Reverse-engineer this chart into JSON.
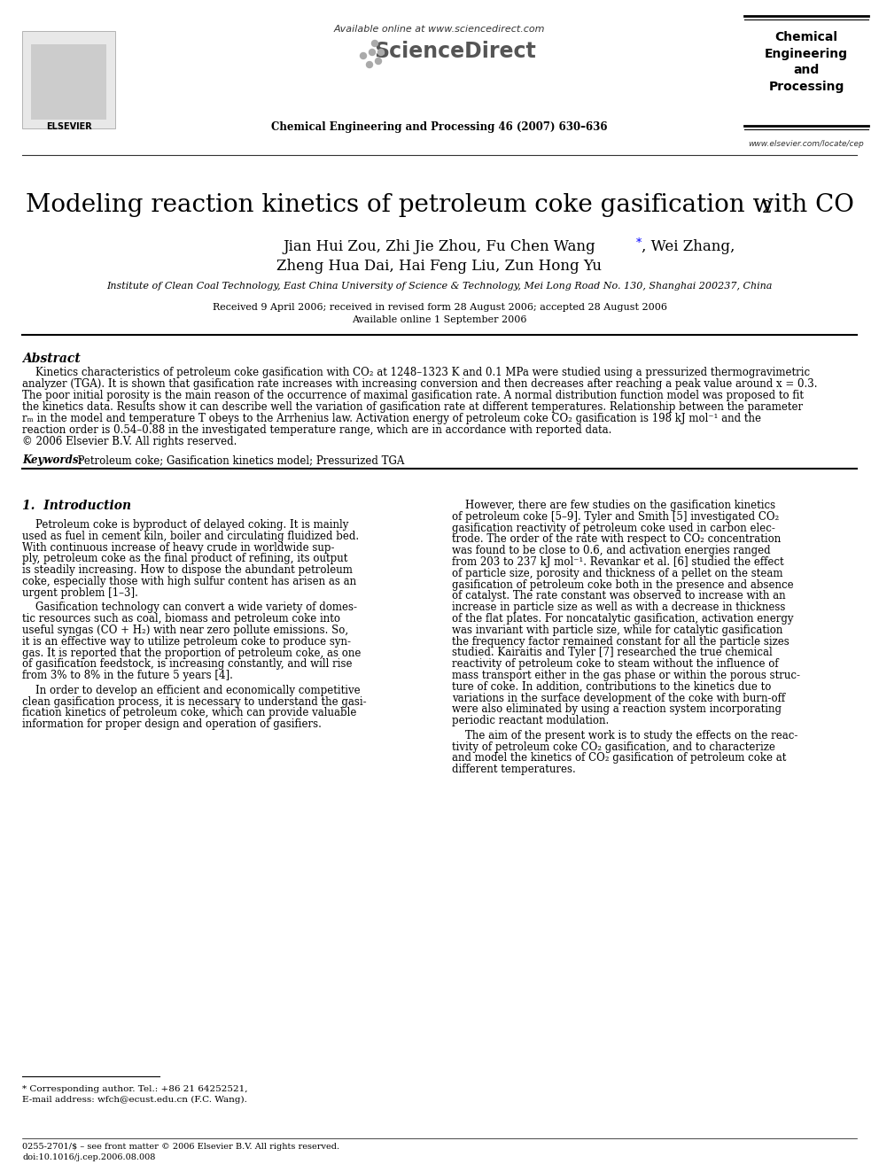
{
  "bg_color": "#ffffff",
  "header_available": "Available online at www.sciencedirect.com",
  "header_journal": "Chemical Engineering and Processing 46 (2007) 630–636",
  "header_website": "www.elsevier.com/locate/cep",
  "header_box_text": "Chemical\nEngineering\nand\nProcessing",
  "title_main": "Modeling reaction kinetics of petroleum coke gasification with CO",
  "authors_line1": "Jian Hui Zou, Zhi Jie Zhou, Fu Chen Wang",
  "authors_line1_end": ", Wei Zhang,",
  "authors_line2": "Zheng Hua Dai, Hai Feng Liu, Zun Hong Yu",
  "affiliation": "Institute of Clean Coal Technology, East China University of Science & Technology, Mei Long Road No. 130, Shanghai 200237, China",
  "received_text": "Received 9 April 2006; received in revised form 28 August 2006; accepted 28 August 2006",
  "online_text": "Available online 1 September 2006",
  "abstract_title": "Abstract",
  "abstract_body": [
    "    Kinetics characteristics of petroleum coke gasification with CO₂ at 1248–1323 K and 0.1 MPa were studied using a pressurized thermogravimetric",
    "analyzer (TGA). It is shown that gasification rate increases with increasing conversion and then decreases after reaching a peak value around x = 0.3.",
    "The poor initial porosity is the main reason of the occurrence of maximal gasification rate. A normal distribution function model was proposed to fit",
    "the kinetics data. Results show it can describe well the variation of gasification rate at different temperatures. Relationship between the parameter",
    "rₘ in the model and temperature T obeys to the Arrhenius law. Activation energy of petroleum coke CO₂ gasification is 198 kJ mol⁻¹ and the",
    "reaction order is 0.54–0.88 in the investigated temperature range, which are in accordance with reported data.",
    "© 2006 Elsevier B.V. All rights reserved."
  ],
  "keywords_label": "Keywords:",
  "keywords_text": "  Petroleum coke; Gasification kinetics model; Pressurized TGA",
  "section1_title": "1.  Introduction",
  "left_col": [
    "    Petroleum coke is byproduct of delayed coking. It is mainly",
    "used as fuel in cement kiln, boiler and circulating fluidized bed.",
    "With continuous increase of heavy crude in worldwide sup-",
    "ply, petroleum coke as the final product of refining, its output",
    "is steadily increasing. How to dispose the abundant petroleum",
    "coke, especially those with high sulfur content has arisen as an",
    "urgent problem [1–3].",
    "",
    "    Gasification technology can convert a wide variety of domes-",
    "tic resources such as coal, biomass and petroleum coke into",
    "useful syngas (CO + H₂) with near zero pollute emissions. So,",
    "it is an effective way to utilize petroleum coke to produce syn-",
    "gas. It is reported that the proportion of petroleum coke, as one",
    "of gasification feedstock, is increasing constantly, and will rise",
    "from 3% to 8% in the future 5 years [4].",
    "",
    "    In order to develop an efficient and economically competitive",
    "clean gasification process, it is necessary to understand the gasi-",
    "fication kinetics of petroleum coke, which can provide valuable",
    "information for proper design and operation of gasifiers."
  ],
  "right_col": [
    "    However, there are few studies on the gasification kinetics",
    "of petroleum coke [5–9]. Tyler and Smith [5] investigated CO₂",
    "gasification reactivity of petroleum coke used in carbon elec-",
    "trode. The order of the rate with respect to CO₂ concentration",
    "was found to be close to 0.6, and activation energies ranged",
    "from 203 to 237 kJ mol⁻¹. Revankar et al. [6] studied the effect",
    "of particle size, porosity and thickness of a pellet on the steam",
    "gasification of petroleum coke both in the presence and absence",
    "of catalyst. The rate constant was observed to increase with an",
    "increase in particle size as well as with a decrease in thickness",
    "of the flat plates. For noncatalytic gasification, activation energy",
    "was invariant with particle size, while for catalytic gasification",
    "the frequency factor remained constant for all the particle sizes",
    "studied. Kairaitis and Tyler [7] researched the true chemical",
    "reactivity of petroleum coke to steam without the influence of",
    "mass transport either in the gas phase or within the porous struc-",
    "ture of coke. In addition, contributions to the kinetics due to",
    "variations in the surface development of the coke with burn-off",
    "were also eliminated by using a reaction system incorporating",
    "periodic reactant modulation.",
    "",
    "    The aim of the present work is to study the effects on the reac-",
    "tivity of petroleum coke CO₂ gasification, and to characterize",
    "and model the kinetics of CO₂ gasification of petroleum coke at",
    "different temperatures."
  ],
  "footnote_line": "* Corresponding author. Tel.: +86 21 64252521,",
  "footnote_email": "E-mail address: wfch@ecust.edu.cn (F.C. Wang).",
  "footer_line1": "0255-2701/$ – see front matter © 2006 Elsevier B.V. All rights reserved.",
  "footer_line2": "doi:10.1016/j.cep.2006.08.008"
}
